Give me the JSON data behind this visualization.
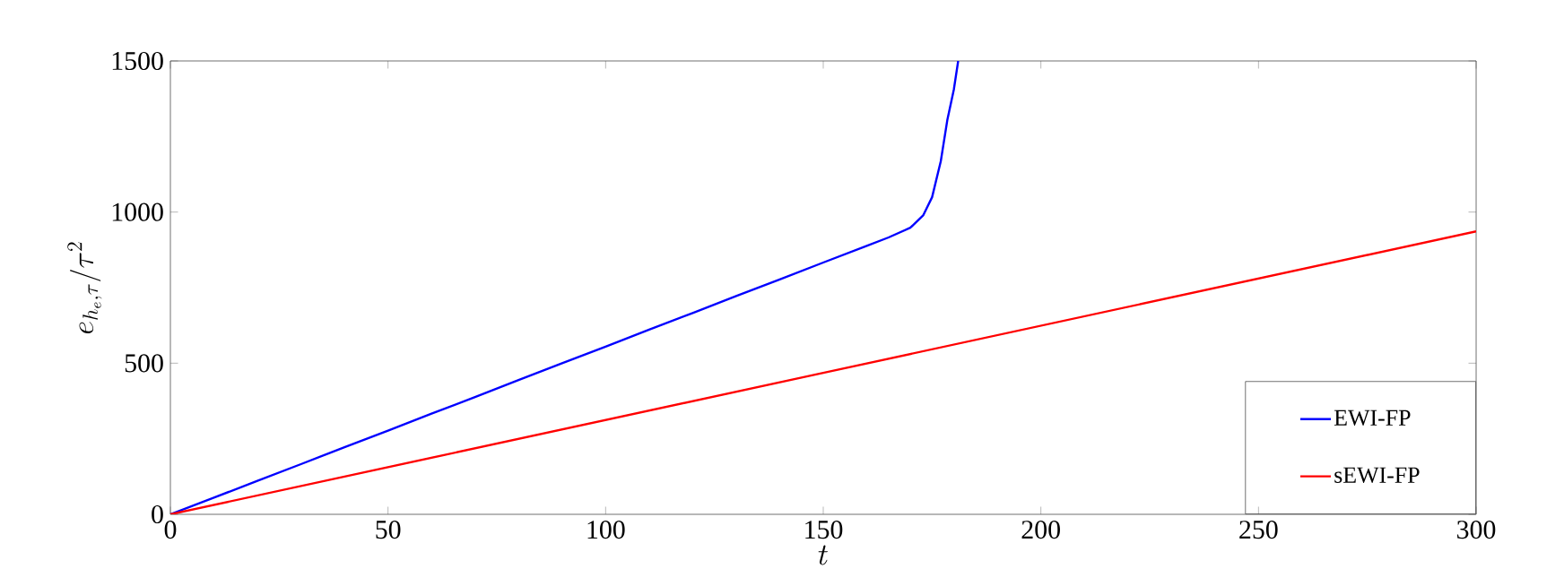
{
  "chart_data": {
    "type": "line",
    "xlabel": "t",
    "ylabel": "e_{h_e,\\tau}/\\tau^2",
    "xlim": [
      0,
      300
    ],
    "xticks": [
      0,
      50,
      100,
      150,
      200,
      250,
      300
    ],
    "ylim": [
      0,
      1500
    ],
    "yticks": [
      0,
      500,
      1000,
      1500
    ],
    "legend": "bottom right",
    "series": [
      {
        "name": "EWI-FP",
        "color": "#0000ff",
        "x": [
          0,
          10,
          20,
          30,
          40,
          50,
          60,
          70,
          80,
          90,
          100,
          110,
          120,
          130,
          140,
          150,
          160,
          165,
          170,
          173,
          175,
          177,
          178.5,
          180,
          181
        ],
        "values": [
          0,
          55,
          111,
          166,
          222,
          277,
          333,
          388,
          444,
          500,
          555,
          611,
          666,
          722,
          777,
          833,
          888,
          916,
          948,
          990,
          1049,
          1168,
          1304,
          1405,
          1500
        ]
      },
      {
        "name": "sEWI-FP",
        "color": "#ff0000",
        "x": [
          0,
          150,
          300
        ],
        "values": [
          0,
          468,
          936
        ]
      }
    ]
  }
}
